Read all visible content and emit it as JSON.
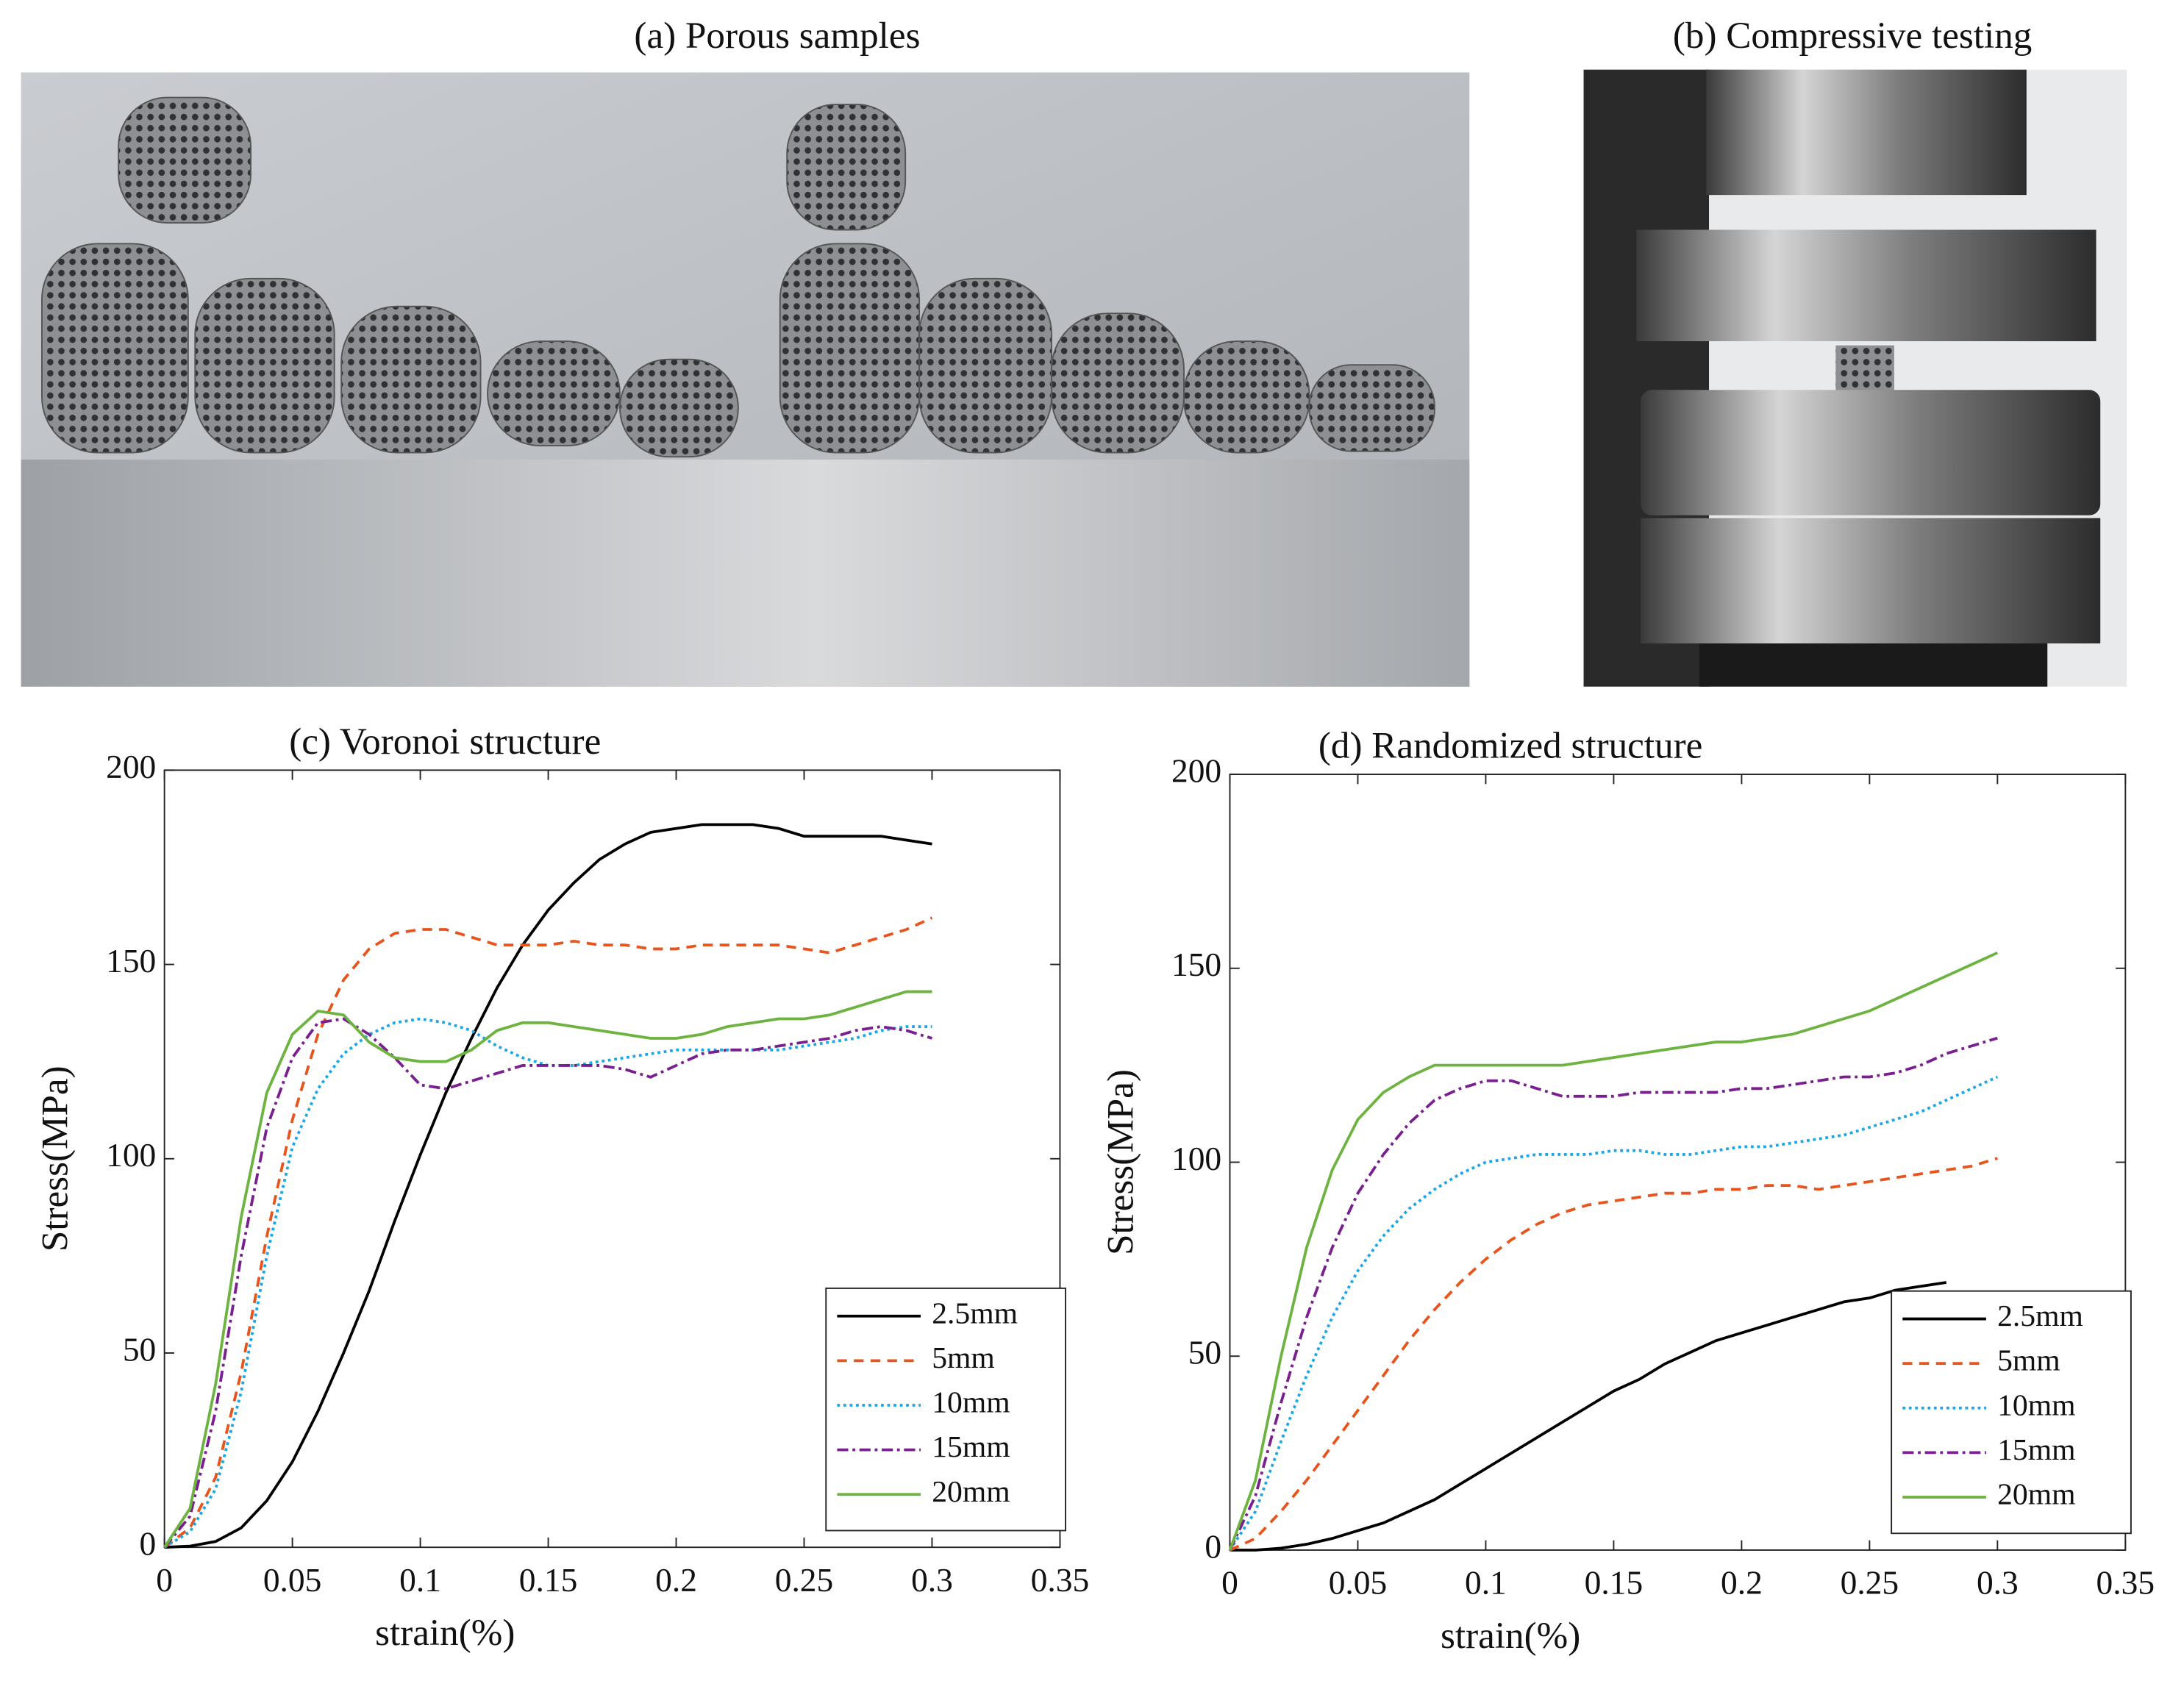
{
  "photos": [
    {
      "title": "(a) Porous samples"
    },
    {
      "title": "(b) Compressive testing"
    }
  ],
  "chart_data": [
    {
      "type": "line",
      "title": "(c) Voronoi structure",
      "x_label": "strain(%)",
      "y_label": "Stress(MPa)",
      "x": [
        0,
        0.01,
        0.02,
        0.03,
        0.04,
        0.05,
        0.06,
        0.07,
        0.08,
        0.09,
        0.1,
        0.11,
        0.12,
        0.13,
        0.14,
        0.15,
        0.16,
        0.17,
        0.18,
        0.19,
        0.2,
        0.21,
        0.22,
        0.23,
        0.24,
        0.25,
        0.26,
        0.27,
        0.28,
        0.29,
        0.3
      ],
      "xlim": [
        0,
        0.35
      ],
      "xticks": [
        0,
        0.05,
        0.1,
        0.15,
        0.2,
        0.25,
        0.3,
        0.35
      ],
      "ylim": [
        0,
        200
      ],
      "yticks": [
        0,
        50,
        100,
        150,
        200
      ],
      "legend": "lower right",
      "series": [
        {
          "name": "2.5mm",
          "color": "#000000",
          "dash": "solid",
          "values": [
            0,
            0.3,
            1.5,
            5,
            12,
            22,
            35,
            50,
            66,
            84,
            101,
            117,
            131,
            144,
            155,
            164,
            171,
            177,
            181,
            184,
            185,
            186,
            186,
            186,
            185,
            183,
            183,
            183,
            183,
            182,
            181
          ]
        },
        {
          "name": "5mm",
          "color": "#e8541c",
          "dash": "dashed",
          "values": [
            0,
            5,
            18,
            45,
            80,
            110,
            132,
            146,
            154,
            158,
            159,
            159,
            157,
            155,
            155,
            155,
            156,
            155,
            155,
            154,
            154,
            155,
            155,
            155,
            155,
            154,
            153,
            155,
            157,
            159,
            162
          ]
        },
        {
          "name": "10mm",
          "color": "#1aa7e8",
          "dash": "dotted",
          "values": [
            0,
            4,
            15,
            40,
            75,
            103,
            118,
            127,
            132,
            135,
            136,
            135,
            133,
            129,
            126,
            124,
            124,
            125,
            126,
            127,
            128,
            128,
            128,
            128,
            128,
            129,
            130,
            131,
            133,
            134,
            134
          ]
        },
        {
          "name": "15mm",
          "color": "#7a1f8f",
          "dash": "dashdot",
          "values": [
            0,
            8,
            35,
            75,
            108,
            126,
            135,
            136,
            132,
            126,
            119,
            118,
            120,
            122,
            124,
            124,
            124,
            124,
            123,
            121,
            124,
            127,
            128,
            128,
            129,
            130,
            131,
            133,
            134,
            133,
            131
          ]
        },
        {
          "name": "20mm",
          "color": "#6db33f",
          "dash": "solid",
          "values": [
            0,
            10,
            42,
            85,
            117,
            132,
            138,
            137,
            130,
            126,
            125,
            125,
            128,
            133,
            135,
            135,
            134,
            133,
            132,
            131,
            131,
            132,
            134,
            135,
            136,
            136,
            137,
            139,
            141,
            143,
            143
          ]
        }
      ]
    },
    {
      "type": "line",
      "title": "(d) Randomized structure",
      "x_label": "strain(%)",
      "y_label": "Stress(MPa)",
      "x": [
        0,
        0.01,
        0.02,
        0.03,
        0.04,
        0.05,
        0.06,
        0.07,
        0.08,
        0.09,
        0.1,
        0.11,
        0.12,
        0.13,
        0.14,
        0.15,
        0.16,
        0.17,
        0.18,
        0.19,
        0.2,
        0.21,
        0.22,
        0.23,
        0.24,
        0.25,
        0.26,
        0.27,
        0.28,
        0.29,
        0.3
      ],
      "xlim": [
        0,
        0.35
      ],
      "xticks": [
        0,
        0.05,
        0.1,
        0.15,
        0.2,
        0.25,
        0.3,
        0.35
      ],
      "ylim": [
        0,
        200
      ],
      "yticks": [
        0,
        50,
        100,
        150,
        200
      ],
      "legend": "lower right",
      "series": [
        {
          "name": "2.5mm",
          "color": "#000000",
          "dash": "solid",
          "values": [
            0,
            0,
            0.5,
            1.5,
            3,
            5,
            7,
            10,
            13,
            17,
            21,
            25,
            29,
            33,
            37,
            41,
            44,
            48,
            51,
            54,
            56,
            58,
            60,
            62,
            64,
            65,
            67,
            68,
            69,
            null,
            null
          ]
        },
        {
          "name": "5mm",
          "color": "#e8541c",
          "dash": "dashed",
          "values": [
            0,
            3,
            10,
            18,
            27,
            36,
            45,
            54,
            62,
            69,
            75,
            80,
            84,
            87,
            89,
            90,
            91,
            92,
            92,
            93,
            93,
            94,
            94,
            93,
            94,
            95,
            96,
            97,
            98,
            99,
            101
          ]
        },
        {
          "name": "10mm",
          "color": "#1aa7e8",
          "dash": "dotted",
          "values": [
            0,
            10,
            28,
            45,
            60,
            72,
            81,
            88,
            93,
            97,
            100,
            101,
            102,
            102,
            102,
            103,
            103,
            102,
            102,
            103,
            104,
            104,
            105,
            106,
            107,
            109,
            111,
            113,
            116,
            119,
            122
          ]
        },
        {
          "name": "15mm",
          "color": "#7a1f8f",
          "dash": "dashdot",
          "values": [
            0,
            14,
            38,
            60,
            78,
            92,
            102,
            110,
            116,
            119,
            121,
            121,
            119,
            117,
            117,
            117,
            118,
            118,
            118,
            118,
            119,
            119,
            120,
            121,
            122,
            122,
            123,
            125,
            128,
            130,
            132
          ]
        },
        {
          "name": "20mm",
          "color": "#6db33f",
          "dash": "solid",
          "values": [
            0,
            18,
            50,
            78,
            98,
            111,
            118,
            122,
            125,
            125,
            125,
            125,
            125,
            125,
            126,
            127,
            128,
            129,
            130,
            131,
            131,
            132,
            133,
            135,
            137,
            139,
            142,
            145,
            148,
            151,
            154
          ]
        }
      ]
    }
  ]
}
